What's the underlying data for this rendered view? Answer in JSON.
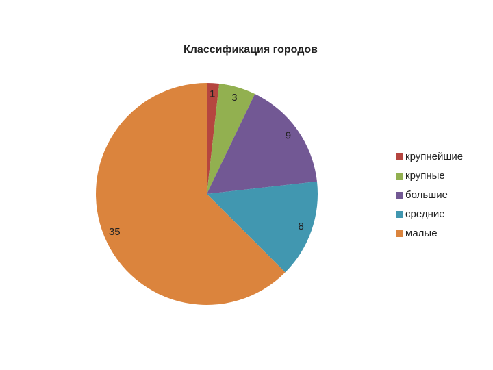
{
  "chart_data": {
    "type": "pie",
    "title": "Классификация городов",
    "categories": [
      "крупнейшие",
      "крупные",
      "большие",
      "средние",
      "малые"
    ],
    "values": [
      1,
      3,
      9,
      8,
      35
    ],
    "colors": [
      "#b5453f",
      "#92b050",
      "#725894",
      "#4197b0",
      "#db843d"
    ],
    "legend": "right"
  }
}
